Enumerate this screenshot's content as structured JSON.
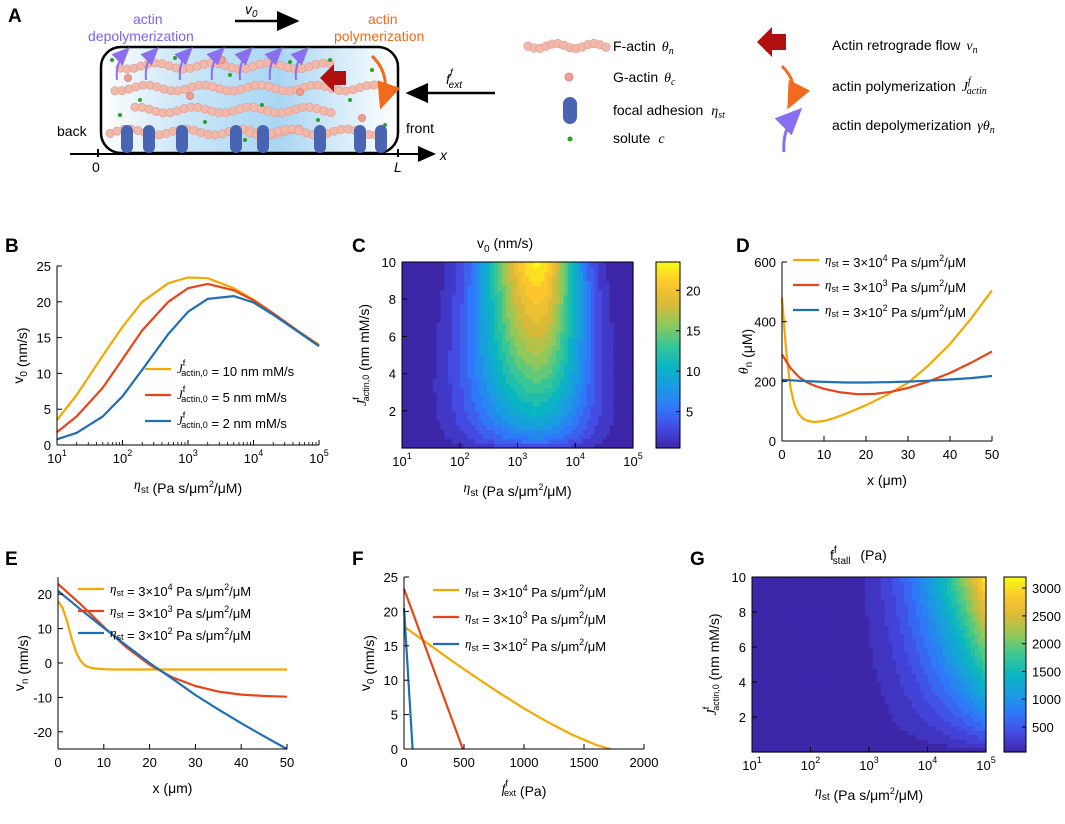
{
  "figure": {
    "panels": [
      {
        "id": "A",
        "letter": "A"
      },
      {
        "id": "B",
        "letter": "B"
      },
      {
        "id": "C",
        "letter": "C"
      },
      {
        "id": "D",
        "letter": "D"
      },
      {
        "id": "E",
        "letter": "E"
      },
      {
        "id": "F",
        "letter": "F"
      },
      {
        "id": "G",
        "letter": "G"
      }
    ]
  },
  "schematic": {
    "v0_label": "v",
    "v0_sub": "0",
    "depoly_label_1": "actin",
    "depoly_label_2": "depolymerization",
    "poly_label_1": "actin",
    "poly_label_2": "polymerization",
    "fext_label": "f",
    "fext_sup": "f",
    "fext_sub": "ext",
    "back_label": "back",
    "front_label": "front",
    "axis_zero": "0",
    "axis_L": "L",
    "axis_x": "x",
    "legend_left": [
      {
        "text": "F-actin",
        "symbol": "θ",
        "sub": "n"
      },
      {
        "text": "G-actin",
        "symbol": "θ",
        "sub": "c"
      },
      {
        "text": "focal adhesion",
        "symbol": "η",
        "sub": "st"
      },
      {
        "text": "solute",
        "symbol": "c",
        "sub": ""
      }
    ],
    "legend_right": [
      {
        "text": "Actin retrograde flow",
        "symbol": "v",
        "sub": "n"
      },
      {
        "text": "actin polymerization",
        "symbol": "J",
        "sub": "actin",
        "sup": "f"
      },
      {
        "text": "actin depolymerization",
        "symbol": "γθ",
        "sub": "n"
      }
    ],
    "colors": {
      "factin": "#f2b8a8",
      "gactin": "#f0a08c",
      "adhesion": "#4a64b4",
      "solute": "#2aa02a",
      "flow_arrow": "#b01010",
      "poly_arrow": "#f26a1b",
      "depoly_arrow": "#8a6ff0",
      "cell_fill": "#bfe1f7"
    }
  },
  "chart_data": [
    {
      "panel": "B",
      "type": "line",
      "xscale": "log",
      "xlim": [
        10,
        100000
      ],
      "ylim": [
        0,
        25
      ],
      "xticks": [
        "10",
        "10",
        "10",
        "10",
        "10"
      ],
      "xtick_exp": [
        "1",
        "2",
        "3",
        "4",
        "5"
      ],
      "yticks": [
        "0",
        "5",
        "10",
        "15",
        "20",
        "25"
      ],
      "ylabel": "v",
      "ylabel_sub": "0",
      "ylabel_unit": " (nm/s)",
      "xlabel": "η",
      "xlabel_sub": "st",
      "xlabel_unit": " (Pa s/μm",
      "xlabel_unit_sup": "2",
      "xlabel_unit_end": "/μM)",
      "legend": [
        {
          "name": "J",
          "sup": "f",
          "sub": "actin,0",
          "label": " = 10 nm mM/s"
        },
        {
          "name": "J",
          "sup": "f",
          "sub": "actin,0",
          "label": " =   5 nm mM/s"
        },
        {
          "name": "J",
          "sup": "f",
          "sub": "actin,0",
          "label": " =   2 nm mM/s"
        }
      ],
      "series": [
        {
          "name": "10 nm mM/s",
          "color": "#f5a800",
          "x": [
            10,
            20,
            50,
            100,
            200,
            500,
            1000,
            2000,
            5000,
            10000,
            20000,
            50000,
            100000
          ],
          "y": [
            3.5,
            7,
            12.5,
            16.5,
            20,
            22.6,
            23.4,
            23.3,
            21.9,
            20.3,
            18.4,
            15.8,
            14
          ]
        },
        {
          "name": "5 nm mM/s",
          "color": "#e6451a",
          "x": [
            10,
            20,
            50,
            100,
            200,
            500,
            1000,
            2000,
            5000,
            10000,
            20000,
            50000,
            100000
          ],
          "y": [
            1.8,
            4,
            8,
            12,
            16,
            20,
            21.9,
            22.5,
            21.6,
            20.2,
            18.4,
            15.8,
            13.9
          ]
        },
        {
          "name": "2 nm mM/s",
          "color": "#1f6fb5",
          "x": [
            10,
            20,
            50,
            100,
            200,
            500,
            1000,
            2000,
            5000,
            10000,
            20000,
            50000,
            100000
          ],
          "y": [
            0.8,
            1.7,
            4,
            6.8,
            10.5,
            15.5,
            18.6,
            20.4,
            20.8,
            19.9,
            18.2,
            15.7,
            13.8
          ]
        }
      ]
    },
    {
      "panel": "C",
      "type": "heatmap",
      "title": "v",
      "title_sub": "0",
      "title_unit": " (nm/s)",
      "xscale": "log",
      "xlim": [
        10,
        100000
      ],
      "ylim": [
        0,
        10
      ],
      "xticks": [
        "10",
        "10",
        "10",
        "10",
        "10"
      ],
      "xtick_exp": [
        "1",
        "2",
        "3",
        "4",
        "5"
      ],
      "yticks": [
        "2",
        "4",
        "6",
        "8",
        "10"
      ],
      "ylabel": "J",
      "ylabel_sup": "f",
      "ylabel_sub": "actin,0",
      "ylabel_unit": " (nm mM/s)",
      "xlabel": "η",
      "xlabel_sub": "st",
      "xlabel_unit": " (Pa s/μm",
      "xlabel_unit_sup": "2",
      "xlabel_unit_end": "/μM)",
      "colorbar_ticks": [
        "5",
        "10",
        "15",
        "20"
      ],
      "colorbar_range": [
        0.5,
        23.5
      ]
    },
    {
      "panel": "D",
      "type": "line",
      "xlim": [
        0,
        50
      ],
      "ylim": [
        0,
        600
      ],
      "xticks": [
        "0",
        "10",
        "20",
        "30",
        "40",
        "50"
      ],
      "yticks": [
        "0",
        "200",
        "400",
        "600"
      ],
      "ylabel": "θ",
      "ylabel_sub": "n",
      "ylabel_unit": " (μM)",
      "xlabel": "x (μm)",
      "legend": [
        {
          "name": "η",
          "sub": "st",
          "label": " = 3×10",
          "exp": "4",
          "unit": " Pa s/μm",
          "unit_sup": "2",
          "unit_end": "/μM"
        },
        {
          "name": "η",
          "sub": "st",
          "label": " = 3×10",
          "exp": "3",
          "unit": " Pa s/μm",
          "unit_sup": "2",
          "unit_end": "/μM"
        },
        {
          "name": "η",
          "sub": "st",
          "label": " = 3×10",
          "exp": "2",
          "unit": " Pa s/μm",
          "unit_sup": "2",
          "unit_end": "/μM"
        }
      ],
      "series": [
        {
          "name": "3×10^4",
          "color": "#f5a800",
          "x": [
            0,
            1,
            2,
            3,
            4,
            5,
            6,
            7,
            8,
            10,
            12,
            15,
            20,
            25,
            30,
            35,
            40,
            45,
            50
          ],
          "y": [
            480,
            300,
            180,
            120,
            90,
            75,
            68,
            65,
            64,
            67,
            75,
            90,
            120,
            155,
            195,
            255,
            325,
            410,
            505
          ]
        },
        {
          "name": "3×10^3",
          "color": "#e6451a",
          "x": [
            0,
            2,
            4,
            6,
            8,
            10,
            14,
            18,
            22,
            26,
            30,
            35,
            40,
            45,
            50
          ],
          "y": [
            290,
            245,
            215,
            196,
            184,
            175,
            163,
            157,
            158,
            165,
            178,
            200,
            228,
            262,
            300
          ]
        },
        {
          "name": "3×10^2",
          "color": "#1f6fb5",
          "x": [
            0,
            5,
            10,
            15,
            20,
            25,
            30,
            35,
            40,
            45,
            50
          ],
          "y": [
            205,
            201,
            198,
            196,
            196,
            197,
            199,
            202,
            206,
            211,
            218
          ]
        }
      ]
    },
    {
      "panel": "E",
      "type": "line",
      "xlim": [
        0,
        50
      ],
      "ylim": [
        -25,
        25
      ],
      "xticks": [
        "0",
        "10",
        "20",
        "30",
        "40",
        "50"
      ],
      "yticks": [
        "-20",
        "-10",
        "0",
        "10",
        "20"
      ],
      "ylabel": "v",
      "ylabel_sub": "n",
      "ylabel_unit": " (nm/s)",
      "xlabel": "x (μm)",
      "legend": [
        {
          "name": "η",
          "sub": "st",
          "label": " = 3×10",
          "exp": "4",
          "unit": " Pa s/μm",
          "unit_sup": "2",
          "unit_end": "/μM"
        },
        {
          "name": "η",
          "sub": "st",
          "label": " = 3×10",
          "exp": "3",
          "unit": " Pa s/μm",
          "unit_sup": "2",
          "unit_end": "/μM"
        },
        {
          "name": "η",
          "sub": "st",
          "label": " = 3×10",
          "exp": "2",
          "unit": " Pa s/μm",
          "unit_sup": "2",
          "unit_end": "/μM"
        }
      ],
      "series": [
        {
          "name": "3×10^4",
          "color": "#f5a800",
          "x": [
            0,
            1,
            2,
            3,
            4,
            5,
            6,
            7,
            8,
            10,
            12,
            15,
            20,
            30,
            40,
            50
          ],
          "y": [
            18,
            16,
            12,
            7,
            3,
            0.5,
            -0.8,
            -1.3,
            -1.6,
            -1.8,
            -1.9,
            -1.9,
            -1.9,
            -1.9,
            -1.9,
            -1.9
          ]
        },
        {
          "name": "3×10^3",
          "color": "#e6451a",
          "x": [
            0,
            5,
            10,
            15,
            20,
            25,
            30,
            35,
            40,
            45,
            50
          ],
          "y": [
            23,
            17,
            10.5,
            4.5,
            -0.5,
            -4.2,
            -6.7,
            -8.3,
            -9.2,
            -9.6,
            -9.8
          ]
        },
        {
          "name": "3×10^2",
          "color": "#1f6fb5",
          "x": [
            0,
            5,
            10,
            15,
            20,
            25,
            30,
            35,
            40,
            45,
            50
          ],
          "y": [
            21,
            15.5,
            10.2,
            5,
            0,
            -4.6,
            -9.3,
            -13.5,
            -17.5,
            -21.3,
            -25
          ]
        }
      ]
    },
    {
      "panel": "F",
      "type": "line",
      "xlim": [
        0,
        2000
      ],
      "ylim": [
        0,
        25
      ],
      "xticks": [
        "0",
        "500",
        "1000",
        "1500",
        "2000"
      ],
      "yticks": [
        "0",
        "5",
        "10",
        "15",
        "20",
        "25"
      ],
      "ylabel": "v",
      "ylabel_sub": "0",
      "ylabel_unit": " (nm/s)",
      "xlabel": "f",
      "xlabel_sup": "f",
      "xlabel_sub": "ext",
      "xlabel_unit": " (Pa)",
      "legend": [
        {
          "name": "η",
          "sub": "st",
          "label": " = 3×10",
          "exp": "4",
          "unit": " Pa s/μm",
          "unit_sup": "2",
          "unit_end": "/μM"
        },
        {
          "name": "η",
          "sub": "st",
          "label": " = 3×10",
          "exp": "3",
          "unit": " Pa s/μm",
          "unit_sup": "2",
          "unit_end": "/μM"
        },
        {
          "name": "η",
          "sub": "st",
          "label": " = 3×10",
          "exp": "2",
          "unit": " Pa s/μm",
          "unit_sup": "2",
          "unit_end": "/μM"
        }
      ],
      "series": [
        {
          "name": "3×10^4",
          "color": "#f5a800",
          "x": [
            0,
            200,
            400,
            600,
            800,
            1000,
            1200,
            1400,
            1600,
            1720
          ],
          "y": [
            17.8,
            15.3,
            12.8,
            10.4,
            8.1,
            5.9,
            3.9,
            2.1,
            0.6,
            0
          ]
        },
        {
          "name": "3×10^3",
          "color": "#e6451a",
          "x": [
            0,
            490
          ],
          "y": [
            23.3,
            0
          ]
        },
        {
          "name": "3×10^2",
          "color": "#1f6fb5",
          "x": [
            0,
            72
          ],
          "y": [
            20.5,
            0
          ]
        }
      ]
    },
    {
      "panel": "G",
      "type": "heatmap",
      "title": "f",
      "title_sup": "f",
      "title_sub": "stall",
      "title_unit": " (Pa)",
      "xscale": "log",
      "xlim": [
        10,
        100000
      ],
      "ylim": [
        0,
        10
      ],
      "xticks": [
        "10",
        "10",
        "10",
        "10",
        "10"
      ],
      "xtick_exp": [
        "1",
        "2",
        "3",
        "4",
        "5"
      ],
      "yticks": [
        "2",
        "4",
        "6",
        "8",
        "10"
      ],
      "ylabel": "J",
      "ylabel_sup": "f",
      "ylabel_sub": "actin,0",
      "ylabel_unit": " (nm mM/s)",
      "xlabel": "η",
      "xlabel_sub": "st",
      "xlabel_unit": " (Pa s/μm",
      "xlabel_unit_sup": "2",
      "xlabel_unit_end": "/μM)",
      "colorbar_ticks": [
        "500",
        "1000",
        "1500",
        "2000",
        "2500",
        "3000"
      ],
      "colorbar_range": [
        50,
        3200
      ]
    }
  ]
}
